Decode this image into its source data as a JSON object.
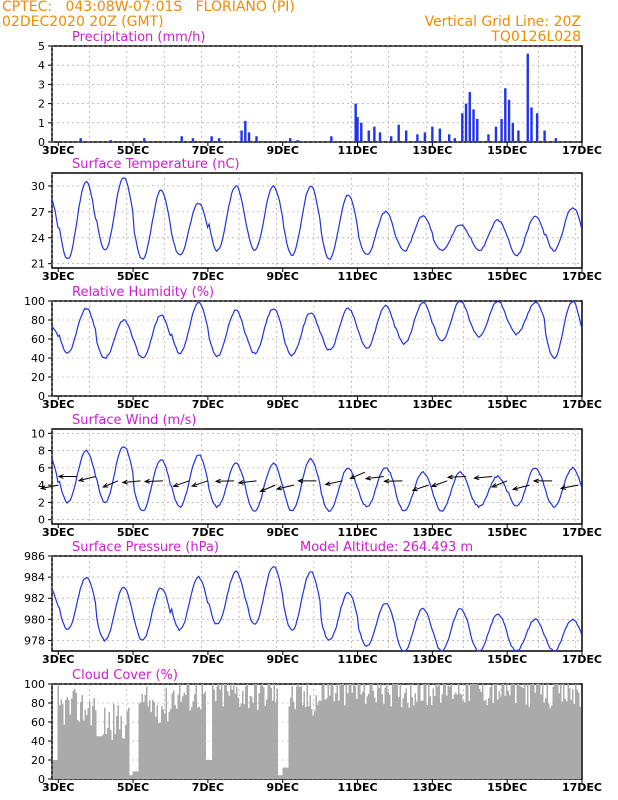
{
  "header": {
    "line1": "CPTEC:   043:08W-07:01S   FLORIANO (PI)",
    "line2": "02DEC2020 20Z (GMT)",
    "right1": "Vertical Grid Line: 20Z",
    "right2": "TQ0126L028"
  },
  "colors": {
    "header": "#f08c00",
    "title": "#d01cd0",
    "line": "#2233dd",
    "bar": "#2233ee",
    "cloud": "#aaaaaa",
    "grid": "#999999"
  },
  "chart_data": [
    {
      "type": "bar",
      "title": "Precipitation (mm/h)",
      "ylim": [
        0,
        5
      ],
      "yticks": [
        0,
        1,
        2,
        3,
        4,
        5
      ],
      "x_labels": [
        "3DEC",
        "5DEC",
        "7DEC",
        "9DEC",
        "11DEC",
        "13DEC",
        "15DEC",
        "17DEC"
      ],
      "x_range_days": [
        2.833,
        17.0
      ],
      "bars": [
        [
          3.6,
          0.2
        ],
        [
          4.4,
          0.1
        ],
        [
          5.3,
          0.2
        ],
        [
          6.3,
          0.3
        ],
        [
          6.6,
          0.2
        ],
        [
          7.1,
          0.3
        ],
        [
          7.3,
          0.2
        ],
        [
          7.9,
          0.6
        ],
        [
          8.0,
          1.1
        ],
        [
          8.1,
          0.5
        ],
        [
          8.3,
          0.3
        ],
        [
          9.2,
          0.2
        ],
        [
          9.4,
          0.1
        ],
        [
          10.3,
          0.3
        ],
        [
          10.95,
          2.0
        ],
        [
          11.0,
          1.3
        ],
        [
          11.1,
          1.0
        ],
        [
          11.3,
          0.6
        ],
        [
          11.45,
          0.8
        ],
        [
          11.6,
          0.5
        ],
        [
          11.9,
          0.3
        ],
        [
          12.1,
          0.9
        ],
        [
          12.3,
          0.6
        ],
        [
          12.6,
          0.4
        ],
        [
          12.8,
          0.5
        ],
        [
          13.0,
          0.8
        ],
        [
          13.2,
          0.7
        ],
        [
          13.45,
          0.4
        ],
        [
          13.6,
          0.2
        ],
        [
          13.8,
          1.5
        ],
        [
          13.9,
          2.0
        ],
        [
          14.0,
          2.6
        ],
        [
          14.1,
          1.7
        ],
        [
          14.2,
          1.2
        ],
        [
          14.5,
          0.4
        ],
        [
          14.7,
          0.8
        ],
        [
          14.85,
          1.2
        ],
        [
          14.95,
          2.8
        ],
        [
          15.05,
          2.2
        ],
        [
          15.15,
          1.0
        ],
        [
          15.3,
          0.6
        ],
        [
          15.55,
          4.6
        ],
        [
          15.65,
          1.8
        ],
        [
          15.8,
          1.5
        ],
        [
          16.0,
          0.6
        ],
        [
          16.3,
          0.2
        ]
      ]
    },
    {
      "type": "line",
      "title": "Surface Temperature (nC)",
      "ylim": [
        20.5,
        31.5
      ],
      "yticks": [
        21,
        24,
        27,
        30
      ],
      "x_labels": [
        "3DEC",
        "5DEC",
        "7DEC",
        "9DEC",
        "11DEC",
        "13DEC",
        "15DEC",
        "17DEC"
      ],
      "daily_max": [
        29.0,
        30.5,
        31.0,
        29.5,
        28.0,
        30.0,
        30.0,
        30.0,
        29.0,
        27.0,
        26.5,
        25.5,
        26.0,
        26.5,
        27.5
      ],
      "daily_min": [
        21.0,
        21.5,
        22.5,
        21.5,
        22.0,
        22.5,
        22.5,
        22.0,
        21.5,
        22.0,
        22.5,
        22.5,
        22.5,
        22.0,
        22.5
      ]
    },
    {
      "type": "line",
      "title": "Relative Humidity (%)",
      "ylim": [
        0,
        100
      ],
      "yticks": [
        0,
        20,
        40,
        60,
        80,
        100
      ],
      "x_labels": [
        "3DEC",
        "5DEC",
        "7DEC",
        "9DEC",
        "11DEC",
        "13DEC",
        "15DEC",
        "17DEC"
      ],
      "daily_max": [
        75,
        92,
        80,
        85,
        98,
        90,
        92,
        88,
        92,
        95,
        98,
        100,
        100,
        98,
        100
      ],
      "daily_min": [
        50,
        45,
        40,
        40,
        45,
        42,
        45,
        43,
        48,
        50,
        55,
        58,
        62,
        65,
        40
      ]
    },
    {
      "type": "line",
      "title": "Surface Wind (m/s)",
      "ylim": [
        -0.5,
        10.5
      ],
      "yticks": [
        0,
        2,
        4,
        6,
        8,
        10
      ],
      "x_labels": [
        "3DEC",
        "5DEC",
        "7DEC",
        "9DEC",
        "11DEC",
        "13DEC",
        "15DEC",
        "17DEC"
      ],
      "daily_max": [
        7.5,
        8.0,
        8.5,
        7.0,
        7.5,
        6.5,
        6.5,
        7.0,
        6.0,
        6.0,
        5.5,
        5.5,
        5.0,
        6.0,
        6.0
      ],
      "daily_min": [
        1.0,
        2.0,
        2.0,
        1.0,
        1.5,
        1.5,
        1.0,
        1.0,
        1.0,
        1.5,
        1.0,
        1.0,
        1.5,
        1.5,
        1.5
      ],
      "vector_days": [
        3.0,
        3.5,
        4.0,
        4.6,
        5.2,
        5.8,
        6.5,
        7.0,
        7.7,
        8.3,
        8.8,
        9.3,
        9.9,
        10.6,
        11.2,
        11.7,
        12.2,
        12.9,
        13.4,
        13.9,
        14.6,
        15.0,
        15.6,
        16.2,
        16.9
      ],
      "vector_speed": [
        4.0,
        5.0,
        5.0,
        4.5,
        4.5,
        4.5,
        4.5,
        4.5,
        4.5,
        4.5,
        4.0,
        4.0,
        4.5,
        4.5,
        5.5,
        5.0,
        4.5,
        4.0,
        4.5,
        5.0,
        5.0,
        4.5,
        4.0,
        4.5,
        4.0
      ]
    },
    {
      "type": "line",
      "title": "Surface Pressure (hPa)",
      "annotation": "Model Altitude: 264.493 m",
      "ylim": [
        977,
        986
      ],
      "yticks": [
        978,
        980,
        982,
        984,
        986
      ],
      "x_labels": [
        "3DEC",
        "5DEC",
        "7DEC",
        "9DEC",
        "11DEC",
        "13DEC",
        "15DEC",
        "17DEC"
      ],
      "daily_max": [
        983.0,
        984.0,
        983.0,
        983.0,
        984.0,
        984.5,
        985.0,
        984.5,
        982.5,
        981.5,
        981.0,
        981.0,
        980.5,
        980.0,
        980.0
      ],
      "daily_min": [
        979.5,
        979.0,
        978.0,
        978.0,
        979.0,
        979.5,
        979.5,
        979.0,
        978.0,
        977.5,
        977.0,
        977.0,
        977.0,
        977.0,
        977.0
      ]
    },
    {
      "type": "bar",
      "title": "Cloud Cover (%)",
      "ylim": [
        0,
        100
      ],
      "yticks": [
        0,
        20,
        40,
        60,
        80,
        100
      ],
      "x_labels": [
        "3DEC",
        "5DEC",
        "7DEC",
        "9DEC",
        "11DEC",
        "13DEC",
        "15DEC",
        "17DEC"
      ],
      "daily_mean": [
        88,
        75,
        60,
        78,
        90,
        92,
        92,
        85,
        95,
        96,
        95,
        98,
        96,
        96,
        92
      ],
      "dips": [
        [
          4.95,
          4
        ],
        [
          5.05,
          8
        ],
        [
          7.0,
          20
        ],
        [
          8.95,
          4
        ],
        [
          9.05,
          12
        ],
        [
          2.9,
          20
        ],
        [
          4.1,
          45
        ]
      ]
    }
  ]
}
